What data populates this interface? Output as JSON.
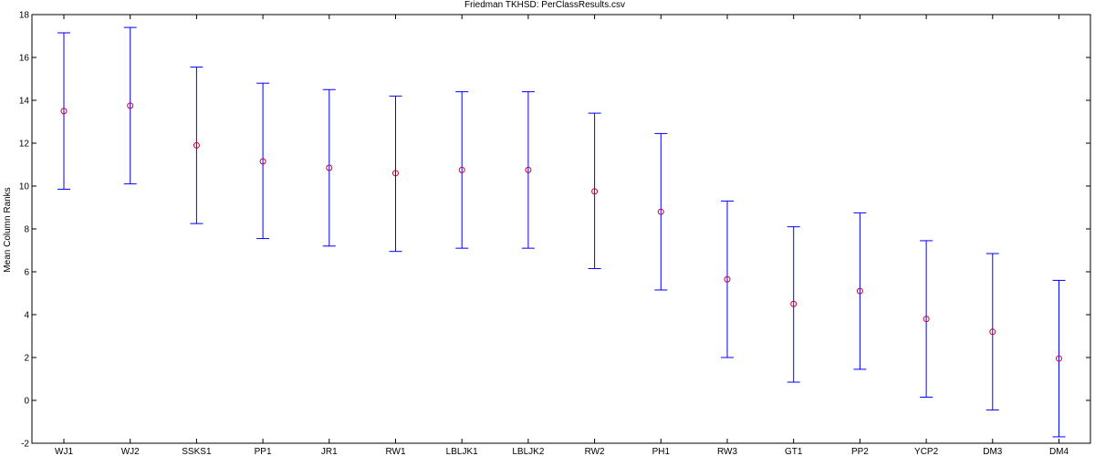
{
  "chart_data": {
    "type": "scatter",
    "title": "Friedman TKHSD: PerClassResults.csv",
    "xlabel": "",
    "ylabel": "Mean Column Ranks",
    "ylim": [
      -2,
      18
    ],
    "yticks": [
      -2,
      0,
      2,
      4,
      6,
      8,
      10,
      12,
      14,
      16,
      18
    ],
    "grid": false,
    "categories": [
      "WJ1",
      "WJ2",
      "SSKS1",
      "PP1",
      "JR1",
      "RW1",
      "LBLJK1",
      "LBLJK2",
      "RW2",
      "PH1",
      "RW3",
      "GT1",
      "PP2",
      "YCP2",
      "DM3",
      "DM4"
    ],
    "series": [
      {
        "mean": [
          13.5,
          13.75,
          11.9,
          11.15,
          10.85,
          10.6,
          10.75,
          10.75,
          9.75,
          8.8,
          5.65,
          4.5,
          5.1,
          3.8,
          3.2,
          1.95
        ],
        "lower": [
          9.85,
          10.1,
          8.25,
          7.55,
          7.2,
          6.95,
          7.1,
          7.1,
          6.15,
          5.15,
          2.0,
          0.85,
          1.45,
          0.15,
          -0.45,
          -1.7
        ],
        "upper": [
          17.15,
          17.4,
          15.55,
          14.8,
          14.5,
          14.2,
          14.4,
          14.4,
          13.4,
          12.45,
          9.3,
          8.1,
          8.75,
          7.45,
          6.85,
          5.6
        ]
      }
    ],
    "colors": {
      "errorbar": "#0000ff",
      "marker": "#cc0033",
      "axes": "#000000"
    }
  }
}
